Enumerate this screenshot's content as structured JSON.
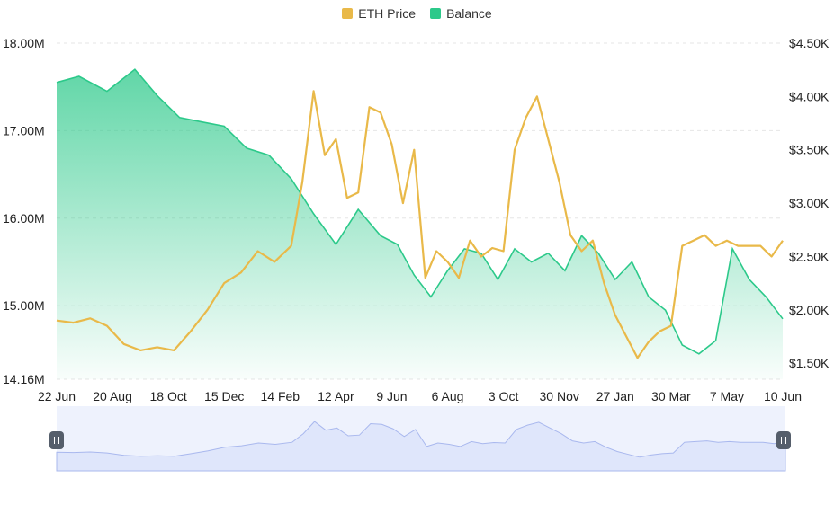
{
  "legend": {
    "eth_label": "ETH Price",
    "balance_label": "Balance"
  },
  "colors": {
    "eth": "#e9b949",
    "balance": "#2cc98a",
    "navigator_fill": "#dfe6fb",
    "navigator_line": "#a9b8ee",
    "grid": "#e6e6e6"
  },
  "chart_data": {
    "type": "line",
    "title": "",
    "x_ticks": [
      "22 Jun",
      "20 Aug",
      "18 Oct",
      "15 Dec",
      "14 Feb",
      "12 Apr",
      "9 Jun",
      "6 Aug",
      "3 Oct",
      "30 Nov",
      "27 Jan",
      "30 Mar",
      "7 May",
      "10 Jun"
    ],
    "left_axis": {
      "ticks": [
        "18.00M",
        "17.00M",
        "16.00M",
        "15.00M",
        "14.16M"
      ],
      "tick_values": [
        18.0,
        17.0,
        16.0,
        15.0,
        14.16
      ],
      "range": [
        14.16,
        18.0
      ],
      "unit": "M"
    },
    "right_axis": {
      "ticks": [
        "$4.50K",
        "$4.00K",
        "$3.50K",
        "$3.00K",
        "$2.50K",
        "$2.00K",
        "$1.50K"
      ],
      "tick_values": [
        4.5,
        4.0,
        3.5,
        3.0,
        2.5,
        2.0,
        1.5
      ],
      "range": [
        1.35,
        4.5
      ],
      "unit": "K USD"
    },
    "series": [
      {
        "name": "Balance",
        "axis": "left",
        "type": "area",
        "x": [
          0,
          0.4,
          0.9,
          1.4,
          1.8,
          2.2,
          2.6,
          3.0,
          3.4,
          3.8,
          4.2,
          4.6,
          5.0,
          5.4,
          5.8,
          6.1,
          6.4,
          6.7,
          7.0,
          7.3,
          7.6,
          7.9,
          8.2,
          8.5,
          8.8,
          9.1,
          9.4,
          9.7,
          10.0,
          10.3,
          10.6,
          10.9,
          11.2,
          11.5,
          11.8,
          12.1,
          12.4,
          12.7,
          13.0
        ],
        "values": [
          17.55,
          17.62,
          17.45,
          17.7,
          17.4,
          17.15,
          17.1,
          17.05,
          16.8,
          16.72,
          16.45,
          16.05,
          15.7,
          16.1,
          15.8,
          15.7,
          15.35,
          15.1,
          15.4,
          15.65,
          15.6,
          15.3,
          15.65,
          15.5,
          15.6,
          15.4,
          15.8,
          15.6,
          15.3,
          15.5,
          15.1,
          14.95,
          14.55,
          14.45,
          14.6,
          15.65,
          15.3,
          15.1,
          14.85
        ]
      },
      {
        "name": "ETH Price",
        "axis": "right",
        "type": "line",
        "x": [
          0,
          0.3,
          0.6,
          0.9,
          1.2,
          1.5,
          1.8,
          2.1,
          2.4,
          2.7,
          3.0,
          3.3,
          3.6,
          3.9,
          4.2,
          4.4,
          4.6,
          4.8,
          5.0,
          5.2,
          5.4,
          5.6,
          5.8,
          6.0,
          6.2,
          6.4,
          6.6,
          6.8,
          7.0,
          7.2,
          7.4,
          7.6,
          7.8,
          8.0,
          8.2,
          8.4,
          8.6,
          8.8,
          9.0,
          9.2,
          9.4,
          9.6,
          9.8,
          10.0,
          10.2,
          10.4,
          10.6,
          10.8,
          11.0,
          11.2,
          11.4,
          11.6,
          11.8,
          12.0,
          12.2,
          12.4,
          12.6,
          12.8,
          13.0
        ],
        "values": [
          1.9,
          1.88,
          1.92,
          1.85,
          1.68,
          1.62,
          1.65,
          1.62,
          1.8,
          2.0,
          2.25,
          2.35,
          2.55,
          2.45,
          2.6,
          3.2,
          4.05,
          3.45,
          3.6,
          3.05,
          3.1,
          3.9,
          3.85,
          3.55,
          3.0,
          3.5,
          2.3,
          2.55,
          2.45,
          2.3,
          2.65,
          2.5,
          2.58,
          2.55,
          3.5,
          3.8,
          4.0,
          3.6,
          3.2,
          2.7,
          2.55,
          2.65,
          2.25,
          1.95,
          1.75,
          1.55,
          1.7,
          1.8,
          1.85,
          2.6,
          2.65,
          2.7,
          2.6,
          2.65,
          2.6,
          2.6,
          2.6,
          2.5,
          2.65
        ]
      }
    ],
    "navigator": {
      "series": "ETH Price",
      "start_label": "22 Jun",
      "end_label": "10 Jun"
    }
  }
}
